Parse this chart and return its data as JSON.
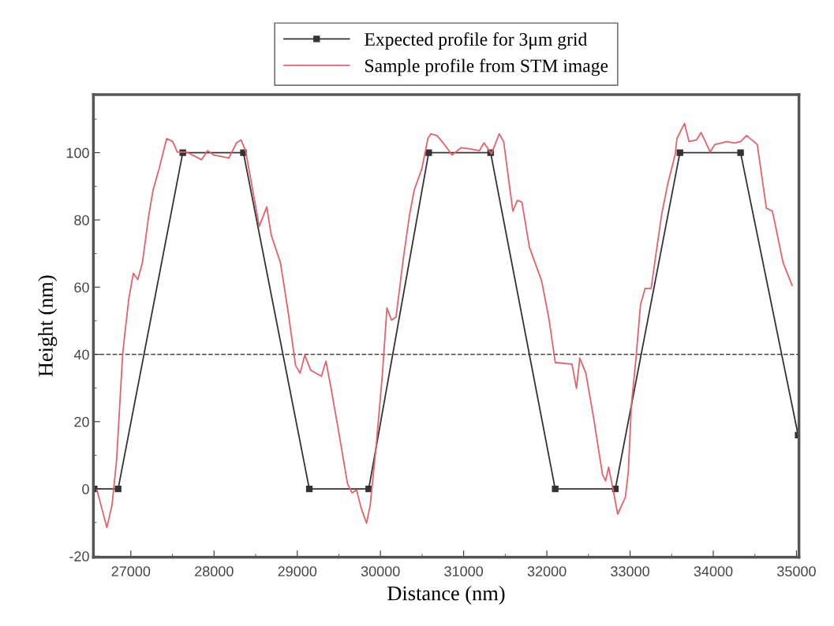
{
  "chart_data": {
    "type": "line",
    "xlabel": "Distance (nm)",
    "ylabel": "Height (nm)",
    "xlim": [
      26550,
      35030
    ],
    "ylim": [
      -20.3,
      117.3
    ],
    "xticks": [
      27000,
      {
        "value": 27500,
        "label": null
      },
      28000,
      {
        "value": 28500,
        "label": null
      },
      29000,
      {
        "value": 29500,
        "label": null
      },
      30000,
      {
        "value": 30500,
        "label": null
      },
      31000,
      {
        "value": 31500,
        "label": null
      },
      32000,
      {
        "value": 32500,
        "label": null
      },
      33000,
      {
        "value": 33500,
        "label": null
      },
      34000,
      {
        "value": 34500,
        "label": null
      },
      35000
    ],
    "yticks": [
      -20,
      {
        "value": -10,
        "label": null
      },
      0,
      {
        "value": 10,
        "label": null
      },
      20,
      {
        "value": 30,
        "label": null
      },
      40,
      {
        "value": 50,
        "label": null
      },
      60,
      {
        "value": 70,
        "label": null
      },
      80,
      {
        "value": 90,
        "label": null
      },
      100,
      {
        "value": 110,
        "label": null
      }
    ],
    "grid": false,
    "legend": "top",
    "ref_lines": [
      {
        "axis": "y",
        "value": 40,
        "color": "#444444",
        "line_style": "dashed"
      }
    ],
    "series": [
      {
        "name": "Expected profile for 3μm grid",
        "color": "#333333",
        "marker": "square",
        "line_style": "solid",
        "x": [
          26560,
          26847,
          27624,
          28353,
          29145,
          29859,
          30580,
          31324,
          32100,
          32823,
          33599,
          34328,
          35020
        ],
        "values": [
          0,
          0,
          100,
          100,
          0,
          0,
          100,
          100,
          0,
          0,
          100,
          100,
          16
        ]
      },
      {
        "name": "Sample profile from STM image",
        "color": "#e8606a",
        "marker": "none",
        "line_style": "solid",
        "x": [
          26592,
          26712,
          26774,
          26829,
          26902,
          26975,
          27030,
          27084,
          27139,
          27212,
          27267,
          27339,
          27431,
          27504,
          27558,
          27668,
          27850,
          27923,
          27996,
          28178,
          28269,
          28324,
          28379,
          28543,
          28634,
          28688,
          28798,
          28889,
          28980,
          29035,
          29090,
          29162,
          29290,
          29345,
          29403,
          29512,
          29604,
          29658,
          29713,
          29768,
          29833,
          29877,
          29950,
          30023,
          30078,
          30132,
          30187,
          30278,
          30351,
          30406,
          30497,
          30570,
          30606,
          30679,
          30770,
          30861,
          30971,
          31080,
          31190,
          31244,
          31335,
          31427,
          31481,
          31591,
          31645,
          31700,
          31791,
          31937,
          32028,
          32101,
          32302,
          32356,
          32396,
          32469,
          32560,
          32669,
          32706,
          32742,
          32797,
          32851,
          32943,
          32979,
          33016,
          33070,
          33125,
          33180,
          33253,
          33307,
          33380,
          33453,
          33544,
          33563,
          33654,
          33708,
          33799,
          33854,
          33963,
          34018,
          34164,
          34255,
          34328,
          34401,
          34529,
          34638,
          34711,
          34839,
          34948
        ],
        "values": [
          -0.3,
          -11.5,
          -4.8,
          8.7,
          40.3,
          56.5,
          64.1,
          62.3,
          67.3,
          80.8,
          88.9,
          95.2,
          104.2,
          103.3,
          100.2,
          100.2,
          97.9,
          100.6,
          99.3,
          98.4,
          102.9,
          103.8,
          100.6,
          78.1,
          83.9,
          75.4,
          67.3,
          52.9,
          36.7,
          34.4,
          39.8,
          35.3,
          33.5,
          38.0,
          30.4,
          15.0,
          1.5,
          -1.2,
          -0.3,
          -5.7,
          -10.2,
          -4.8,
          13.2,
          34.0,
          53.8,
          50.2,
          51.1,
          69.1,
          81.7,
          88.9,
          95.2,
          104.2,
          105.6,
          105.1,
          102.4,
          99.3,
          101.5,
          101.1,
          100.6,
          102.9,
          99.7,
          105.6,
          103.3,
          82.6,
          85.8,
          85.3,
          71.8,
          61.9,
          50.2,
          37.6,
          37.1,
          29.9,
          38.9,
          34.4,
          21.4,
          4.2,
          2.4,
          6.5,
          -0.3,
          -7.5,
          -2.5,
          5.1,
          25.0,
          38.5,
          54.7,
          59.6,
          59.6,
          69.1,
          81.7,
          90.7,
          99.7,
          104.2,
          108.7,
          103.3,
          103.8,
          106.0,
          100.2,
          102.4,
          103.3,
          102.9,
          103.3,
          105.1,
          102.4,
          83.5,
          82.6,
          67.3,
          60.5
        ]
      }
    ]
  }
}
